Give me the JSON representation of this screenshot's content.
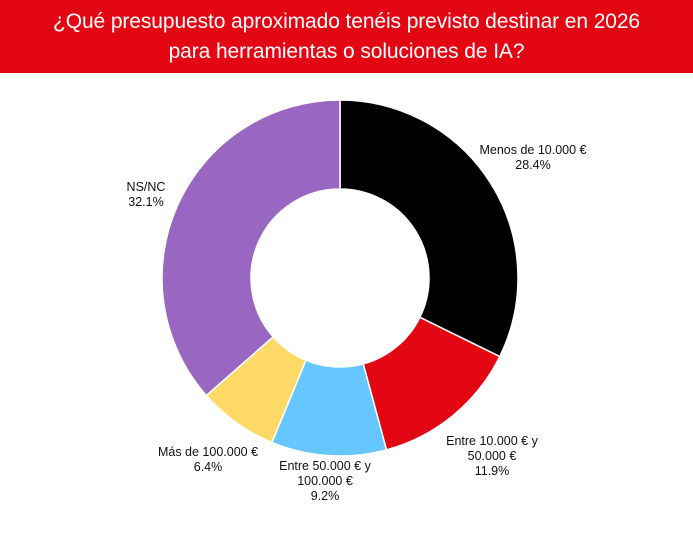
{
  "header": {
    "title_line1": "¿Qué presupuesto aproximado tenéis previsto destinar en 2026",
    "title_line2": "para herramientas o soluciones de IA?",
    "background": "#e30613"
  },
  "chart_data": {
    "type": "pie",
    "donut": true,
    "title": "¿Qué presupuesto aproximado tenéis previsto destinar en 2026 para herramientas o soluciones de IA?",
    "slices": [
      {
        "label_lines": [
          "Menos de 10.000 €"
        ],
        "value": 28.4,
        "value_label": "28.4%",
        "color": "#000000"
      },
      {
        "label_lines": [
          "Entre 10.000 € y",
          "50.000 €"
        ],
        "value": 11.9,
        "value_label": "11.9%",
        "color": "#e30613"
      },
      {
        "label_lines": [
          "Entre 50.000 € y",
          "100.000 €"
        ],
        "value": 9.2,
        "value_label": "9.2%",
        "color": "#66c6ff"
      },
      {
        "label_lines": [
          "Más de 100.000 €"
        ],
        "value": 6.4,
        "value_label": "6.4%",
        "color": "#ffd966"
      },
      {
        "label_lines": [
          "NS/NC"
        ],
        "value": 32.1,
        "value_label": "32.1%",
        "color": "#9966c2"
      }
    ]
  }
}
